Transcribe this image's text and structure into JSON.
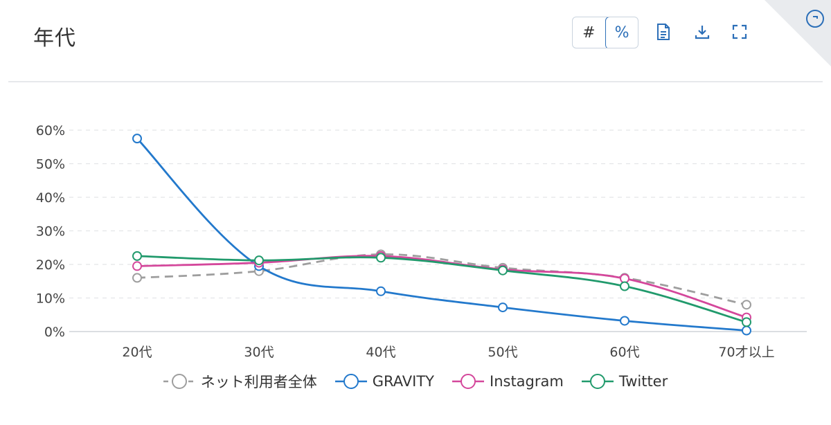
{
  "header": {
    "title": "年代"
  },
  "toolbar": {
    "count_toggle": "#",
    "percent_toggle": "%"
  },
  "icons": [
    "document-icon",
    "download-icon",
    "fullscreen-icon",
    "help-icon"
  ],
  "colors": {
    "accent": "#2c6fb8"
  },
  "chart_data": {
    "type": "line",
    "categories": [
      "20代",
      "30代",
      "40代",
      "50代",
      "60代",
      "70才以上"
    ],
    "ylim": [
      0,
      60
    ],
    "yticks": [
      "0%",
      "10%",
      "20%",
      "30%",
      "40%",
      "50%",
      "60%"
    ],
    "grid": true,
    "legend_position": "bottom",
    "series": [
      {
        "name": "ネット利用者全体",
        "color": "#9e9e9e",
        "dashed": true,
        "values": [
          16,
          18,
          23,
          19,
          16,
          8
        ]
      },
      {
        "name": "GRAVITY",
        "color": "#2379cc",
        "dashed": false,
        "values": [
          57.5,
          19.5,
          12,
          7.2,
          3.2,
          0.3
        ]
      },
      {
        "name": "Instagram",
        "color": "#d4479b",
        "dashed": false,
        "values": [
          19.5,
          20.5,
          22.5,
          18.5,
          15.8,
          4.2
        ]
      },
      {
        "name": "Twitter",
        "color": "#219a6c",
        "dashed": false,
        "values": [
          22.5,
          21.2,
          22,
          18.2,
          13.5,
          2.8
        ]
      }
    ]
  }
}
